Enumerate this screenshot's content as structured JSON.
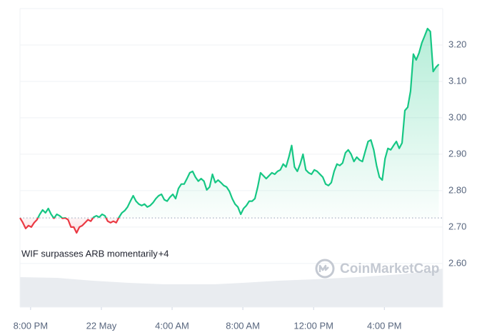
{
  "chart_data": {
    "type": "line",
    "x": [
      -0.6,
      -0.44,
      -0.28,
      -0.12,
      0.04,
      0.2,
      0.36,
      0.52,
      0.68,
      0.84,
      1,
      1.16,
      1.32,
      1.48,
      1.64,
      1.8,
      1.96,
      2.12,
      2.28,
      2.44,
      2.6,
      2.76,
      2.92,
      3.08,
      3.24,
      3.4,
      3.56,
      3.72,
      3.88,
      4.04,
      4.2,
      4.36,
      4.52,
      4.68,
      4.84,
      5,
      5.16,
      5.32,
      5.48,
      5.64,
      5.8,
      5.96,
      6.12,
      6.28,
      6.44,
      6.6,
      6.76,
      6.92,
      7.08,
      7.24,
      7.4,
      7.56,
      7.72,
      7.88,
      8.04,
      8.2,
      8.36,
      8.52,
      8.68,
      8.84,
      9,
      9.16,
      9.32,
      9.48,
      9.64,
      9.8,
      9.96,
      10.12,
      10.28,
      10.44,
      10.6,
      10.76,
      10.92,
      11.08,
      11.24,
      11.4,
      11.56,
      11.72,
      11.88,
      12.04,
      12.2,
      12.36,
      12.52,
      12.68,
      12.84,
      13,
      13.16,
      13.32,
      13.48,
      13.64,
      13.8,
      13.96,
      14.12,
      14.28,
      14.44,
      14.6,
      14.76,
      14.92,
      15.08,
      15.24,
      15.4,
      15.56,
      15.72,
      15.88,
      16.04,
      16.2,
      16.36,
      16.52,
      16.68,
      16.84,
      17,
      17.16,
      17.32,
      17.48,
      17.64,
      17.8,
      17.96,
      18.12,
      18.28,
      18.44,
      18.6,
      18.76,
      18.92,
      19.08,
      19.24,
      19.4,
      19.56,
      19.72,
      19.88,
      20.04,
      20.2,
      20.36,
      20.52,
      20.68,
      20.84,
      21,
      21.16,
      21.32,
      21.48,
      21.64,
      21.8,
      21.96,
      22.12,
      22.28,
      22.44,
      22.6,
      22.76,
      22.92,
      23.08
    ],
    "values": [
      2.725,
      2.712,
      2.696,
      2.704,
      2.7,
      2.712,
      2.72,
      2.735,
      2.747,
      2.739,
      2.751,
      2.735,
      2.724,
      2.735,
      2.731,
      2.724,
      2.725,
      2.72,
      2.7,
      2.7,
      2.684,
      2.7,
      2.704,
      2.712,
      2.72,
      2.716,
      2.727,
      2.731,
      2.727,
      2.735,
      2.731,
      2.716,
      2.712,
      2.716,
      2.712,
      2.727,
      2.739,
      2.745,
      2.755,
      2.771,
      2.786,
      2.771,
      2.763,
      2.759,
      2.763,
      2.755,
      2.759,
      2.767,
      2.778,
      2.786,
      2.79,
      2.775,
      2.771,
      2.782,
      2.79,
      2.778,
      2.806,
      2.818,
      2.818,
      2.833,
      2.849,
      2.853,
      2.837,
      2.826,
      2.833,
      2.826,
      2.802,
      2.81,
      2.845,
      2.822,
      2.829,
      2.822,
      2.814,
      2.81,
      2.798,
      2.778,
      2.763,
      2.755,
      2.735,
      2.751,
      2.759,
      2.771,
      2.771,
      2.778,
      2.81,
      2.849,
      2.841,
      2.833,
      2.841,
      2.849,
      2.845,
      2.853,
      2.857,
      2.873,
      2.865,
      2.892,
      2.924,
      2.865,
      2.853,
      2.873,
      2.9,
      2.857,
      2.849,
      2.845,
      2.857,
      2.853,
      2.845,
      2.837,
      2.818,
      2.814,
      2.822,
      2.853,
      2.873,
      2.869,
      2.876,
      2.904,
      2.912,
      2.9,
      2.88,
      2.892,
      2.884,
      2.88,
      2.908,
      2.935,
      2.939,
      2.912,
      2.869,
      2.837,
      2.829,
      2.888,
      2.916,
      2.912,
      2.924,
      2.935,
      2.916,
      2.931,
      3.02,
      3.029,
      3.073,
      3.175,
      3.159,
      3.178,
      3.206,
      3.225,
      3.245,
      3.237,
      3.127,
      3.139,
      3.147
    ],
    "baseline": 2.725,
    "color_up": "#16c784",
    "color_down": "#ea3943",
    "xlim": [
      -0.6,
      23.3
    ],
    "xticks": [
      {
        "value": 0,
        "label": "8:00 PM"
      },
      {
        "value": 4,
        "label": "22 May"
      },
      {
        "value": 8,
        "label": "4:00 AM"
      },
      {
        "value": 12,
        "label": "8:00 AM"
      },
      {
        "value": 16,
        "label": "12:00 PM"
      },
      {
        "value": 20,
        "label": "4:00 PM"
      }
    ],
    "ylim": [
      2.48,
      3.3
    ],
    "yticks": [
      {
        "value": 2.6,
        "label": "2.60"
      },
      {
        "value": 2.7,
        "label": "2.70"
      },
      {
        "value": 2.8,
        "label": "2.80"
      },
      {
        "value": 2.9,
        "label": "2.90"
      },
      {
        "value": 3.0,
        "label": "3.00"
      },
      {
        "value": 3.1,
        "label": "3.10"
      },
      {
        "value": 3.2,
        "label": "3.20"
      }
    ],
    "grid": true,
    "annotation": "WIF surpasses ARB momentarily",
    "annotation_count": "+4",
    "watermark": "CoinMarketCap"
  }
}
